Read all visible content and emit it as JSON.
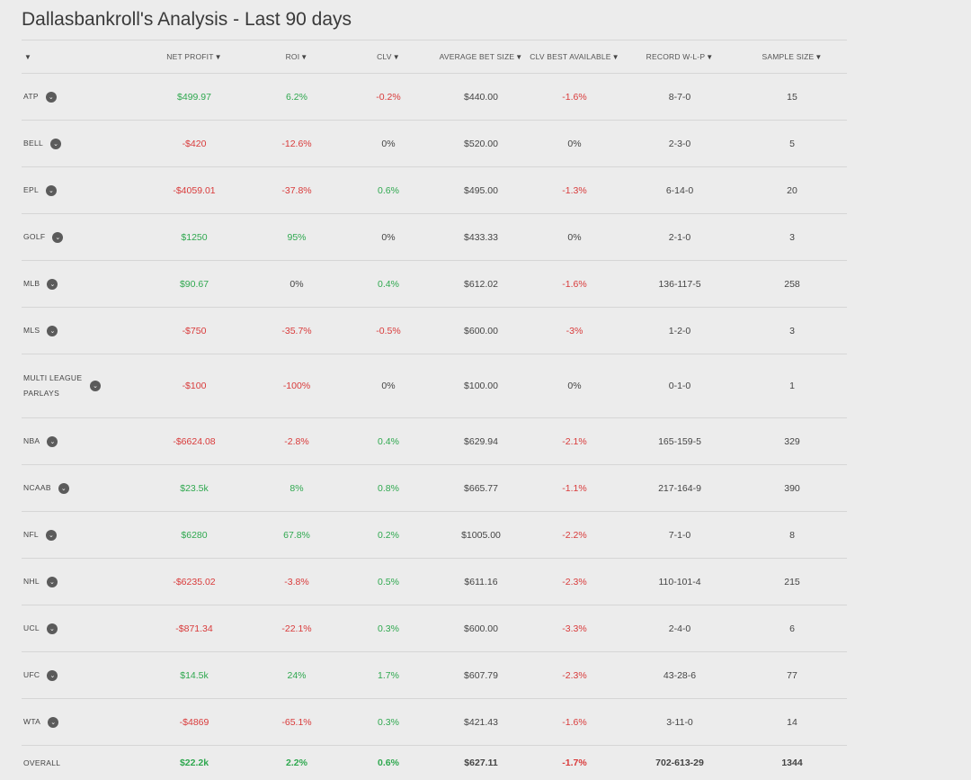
{
  "page": {
    "title": "Dallasbankroll's Analysis - Last 90 days"
  },
  "colors": {
    "positive": "#2fa84f",
    "negative": "#d93a3a",
    "neutral": "#444444",
    "background": "#ececec"
  },
  "table": {
    "columns": [
      "",
      "NET PROFIT",
      "ROI",
      "CLV",
      "AVERAGE BET SIZE",
      "CLV BEST AVAILABLE",
      "RECORD W-L-P",
      "SAMPLE SIZE"
    ],
    "rows": [
      {
        "league": "ATP",
        "net_profit": "$499.97",
        "roi": "6.2%",
        "clv": "-0.2%",
        "avg_bet": "$440.00",
        "clv_best": "-1.6%",
        "record": "8-7-0",
        "sample": "15"
      },
      {
        "league": "BELL",
        "net_profit": "-$420",
        "roi": "-12.6%",
        "clv": "0%",
        "avg_bet": "$520.00",
        "clv_best": "0%",
        "record": "2-3-0",
        "sample": "5"
      },
      {
        "league": "EPL",
        "net_profit": "-$4059.01",
        "roi": "-37.8%",
        "clv": "0.6%",
        "avg_bet": "$495.00",
        "clv_best": "-1.3%",
        "record": "6-14-0",
        "sample": "20"
      },
      {
        "league": "GOLF",
        "net_profit": "$1250",
        "roi": "95%",
        "clv": "0%",
        "avg_bet": "$433.33",
        "clv_best": "0%",
        "record": "2-1-0",
        "sample": "3"
      },
      {
        "league": "MLB",
        "net_profit": "$90.67",
        "roi": "0%",
        "clv": "0.4%",
        "avg_bet": "$612.02",
        "clv_best": "-1.6%",
        "record": "136-117-5",
        "sample": "258"
      },
      {
        "league": "MLS",
        "net_profit": "-$750",
        "roi": "-35.7%",
        "clv": "-0.5%",
        "avg_bet": "$600.00",
        "clv_best": "-3%",
        "record": "1-2-0",
        "sample": "3"
      },
      {
        "league": "MULTI LEAGUE PARLAYS",
        "net_profit": "-$100",
        "roi": "-100%",
        "clv": "0%",
        "avg_bet": "$100.00",
        "clv_best": "0%",
        "record": "0-1-0",
        "sample": "1"
      },
      {
        "league": "NBA",
        "net_profit": "-$6624.08",
        "roi": "-2.8%",
        "clv": "0.4%",
        "avg_bet": "$629.94",
        "clv_best": "-2.1%",
        "record": "165-159-5",
        "sample": "329"
      },
      {
        "league": "NCAAB",
        "net_profit": "$23.5k",
        "roi": "8%",
        "clv": "0.8%",
        "avg_bet": "$665.77",
        "clv_best": "-1.1%",
        "record": "217-164-9",
        "sample": "390"
      },
      {
        "league": "NFL",
        "net_profit": "$6280",
        "roi": "67.8%",
        "clv": "0.2%",
        "avg_bet": "$1005.00",
        "clv_best": "-2.2%",
        "record": "7-1-0",
        "sample": "8"
      },
      {
        "league": "NHL",
        "net_profit": "-$6235.02",
        "roi": "-3.8%",
        "clv": "0.5%",
        "avg_bet": "$611.16",
        "clv_best": "-2.3%",
        "record": "110-101-4",
        "sample": "215"
      },
      {
        "league": "UCL",
        "net_profit": "-$871.34",
        "roi": "-22.1%",
        "clv": "0.3%",
        "avg_bet": "$600.00",
        "clv_best": "-3.3%",
        "record": "2-4-0",
        "sample": "6"
      },
      {
        "league": "UFC",
        "net_profit": "$14.5k",
        "roi": "24%",
        "clv": "1.7%",
        "avg_bet": "$607.79",
        "clv_best": "-2.3%",
        "record": "43-28-6",
        "sample": "77"
      },
      {
        "league": "WTA",
        "net_profit": "-$4869",
        "roi": "-65.1%",
        "clv": "0.3%",
        "avg_bet": "$421.43",
        "clv_best": "-1.6%",
        "record": "3-11-0",
        "sample": "14"
      }
    ],
    "overall": {
      "league": "OVERALL",
      "net_profit": "$22.2k",
      "roi": "2.2%",
      "clv": "0.6%",
      "avg_bet": "$627.11",
      "clv_best": "-1.7%",
      "record": "702-613-29",
      "sample": "1344"
    }
  }
}
